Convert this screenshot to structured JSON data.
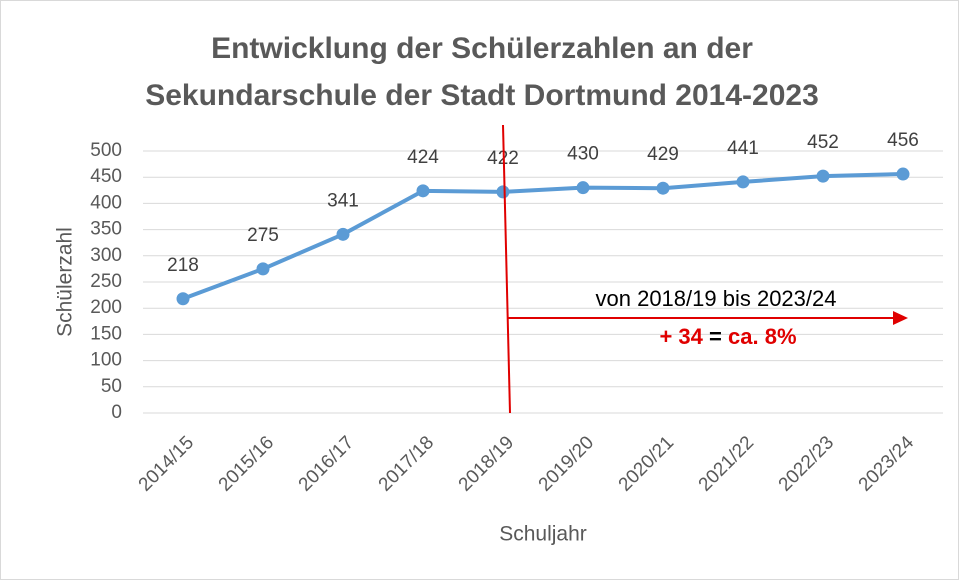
{
  "chart_data": {
    "type": "line",
    "title": [
      "Entwicklung der Schülerzahlen an der",
      "Sekundarschule der Stadt Dortmund 2014-2023"
    ],
    "x_label": "Schuljahr",
    "y_label": "Schülerzahl",
    "categories": [
      "2014/15",
      "2015/16",
      "2016/17",
      "2017/18",
      "2018/19",
      "2019/20",
      "2020/21",
      "2021/22",
      "2022/23",
      "2023/24"
    ],
    "values": [
      218,
      275,
      341,
      424,
      422,
      430,
      429,
      441,
      452,
      456
    ],
    "color": "#5b9bd5",
    "ylim": [
      0,
      500
    ],
    "yticks": [
      0,
      50,
      100,
      150,
      200,
      250,
      300,
      350,
      400,
      450,
      500
    ],
    "grid": true,
    "annotations": [
      "von 2018/19 bis 2023/24",
      "+ 34",
      "=",
      "ca. 8%"
    ]
  }
}
